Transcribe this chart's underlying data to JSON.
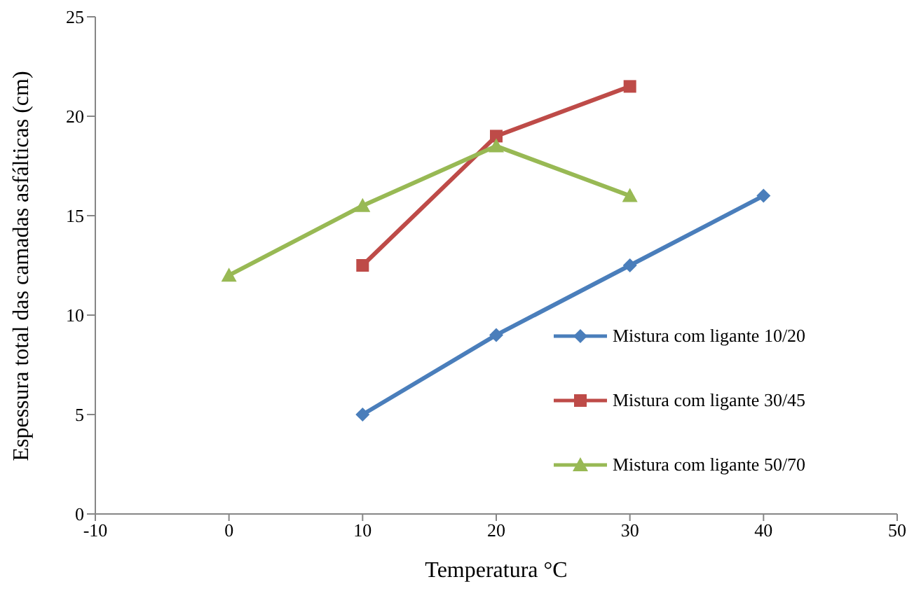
{
  "chart_data": {
    "type": "line",
    "xlabel": "Temperatura  °C",
    "ylabel": "Espessura total das camadas  asfálticas (cm)",
    "xlim": [
      -10,
      50
    ],
    "xticks": [
      -10,
      0,
      10,
      20,
      30,
      40,
      50
    ],
    "ylim": [
      0,
      25
    ],
    "yticks": [
      0,
      5,
      10,
      15,
      20,
      25
    ],
    "grid": false,
    "legend": "right",
    "line_style": "solid",
    "series": [
      {
        "name": "Mistura com ligante 10/20",
        "color": "#4a7ebb",
        "marker": "diamond",
        "x": [
          10,
          20,
          30,
          40
        ],
        "values": [
          5,
          9,
          12.5,
          16
        ]
      },
      {
        "name": "Mistura com ligante 30/45",
        "color": "#be4b48",
        "marker": "square",
        "x": [
          10,
          20,
          30
        ],
        "values": [
          12.5,
          19,
          21.5
        ]
      },
      {
        "name": "Mistura com ligante 50/70",
        "color": "#98b954",
        "marker": "triangle",
        "x": [
          0,
          10,
          20,
          30
        ],
        "values": [
          12,
          15.5,
          18.5,
          16
        ]
      }
    ]
  }
}
